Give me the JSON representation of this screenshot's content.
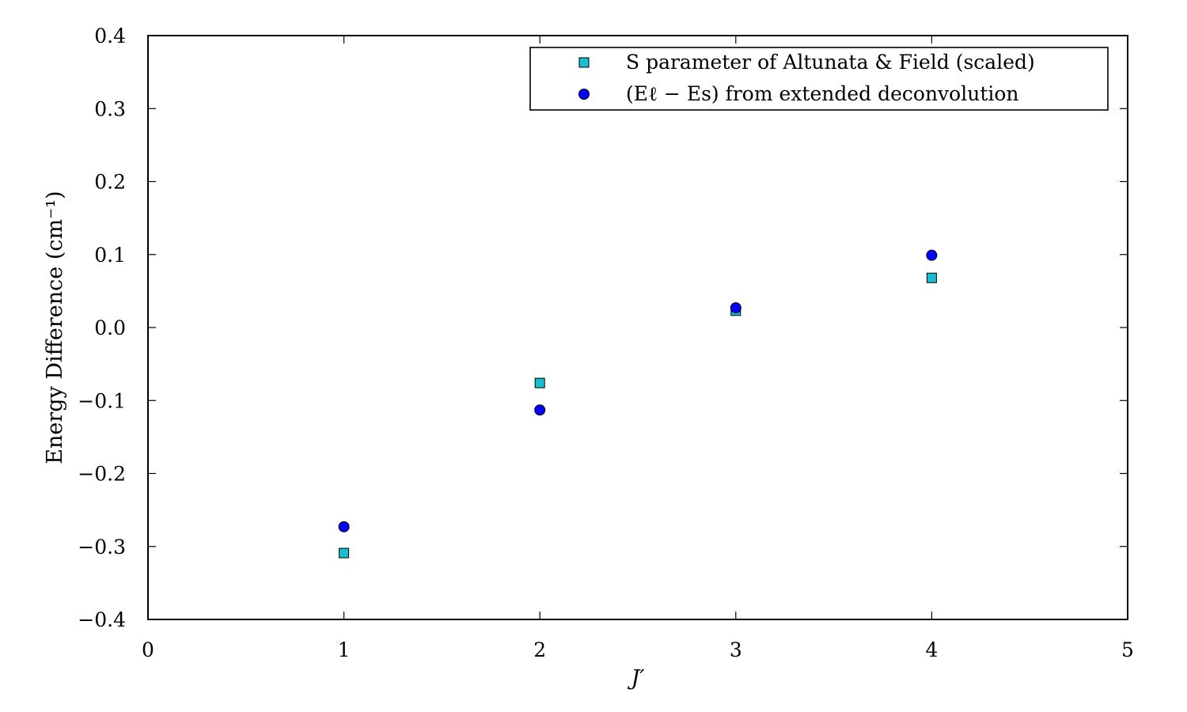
{
  "chart_data": {
    "type": "scatter",
    "title": "",
    "xlabel": "J′",
    "ylabel": "Energy Difference (cm⁻¹)",
    "xlim": [
      0,
      5
    ],
    "ylim": [
      -0.4,
      0.4
    ],
    "xticks": [
      0,
      1,
      2,
      3,
      4,
      5
    ],
    "yticks": [
      -0.4,
      -0.3,
      -0.2,
      -0.1,
      0.0,
      0.1,
      0.2,
      0.3,
      0.4
    ],
    "xtick_labels": [
      "0",
      "1",
      "2",
      "3",
      "4",
      "5"
    ],
    "ytick_labels": [
      "−0.4",
      "−0.3",
      "−0.2",
      "−0.1",
      "0.0",
      "0.1",
      "0.2",
      "0.3",
      "0.4"
    ],
    "grid": false,
    "legend_position": "top-right",
    "series": [
      {
        "name": "S parameter of Altunata & Field (scaled)",
        "marker": "square",
        "color": "#17becf",
        "x": [
          1,
          2,
          3,
          4
        ],
        "y": [
          -0.309,
          -0.076,
          0.023,
          0.068
        ]
      },
      {
        "name": "(Eℓ − Es) from extended deconvolution",
        "marker": "circle",
        "color": "#0000ff",
        "x": [
          1,
          2,
          3,
          4
        ],
        "y": [
          -0.273,
          -0.113,
          0.027,
          0.099
        ]
      }
    ]
  }
}
